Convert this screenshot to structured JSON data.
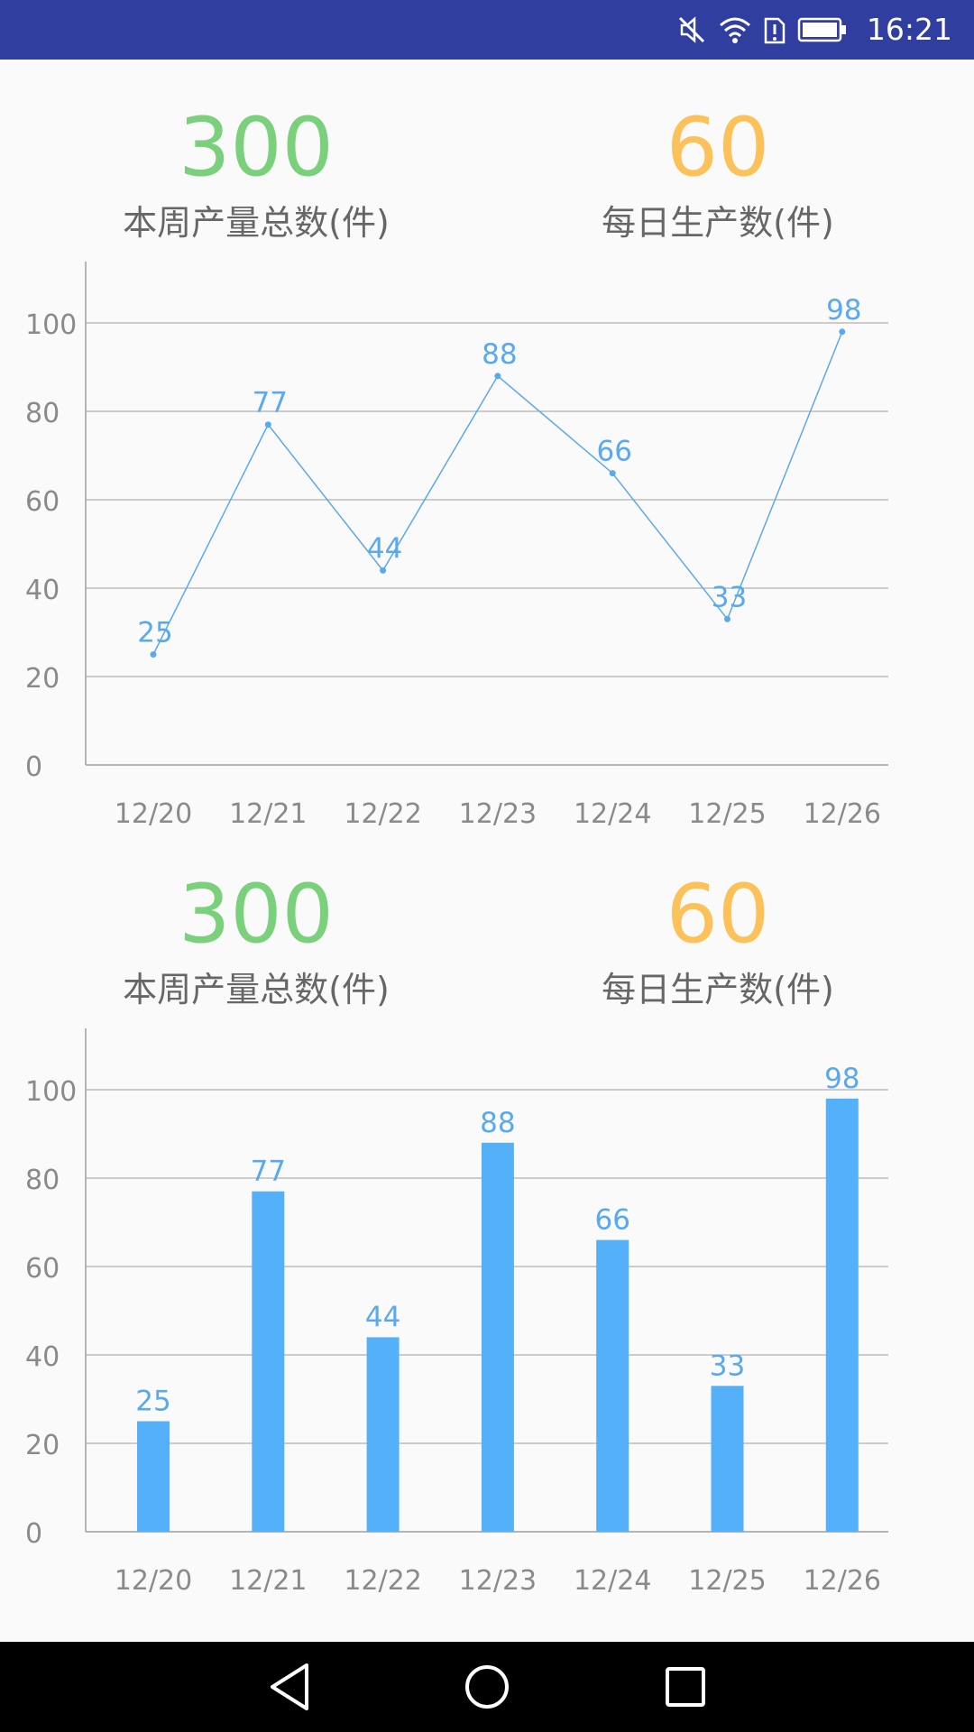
{
  "status_bar": {
    "time": "16:21",
    "icons": [
      "mute-icon",
      "wifi-icon",
      "sim-alert-icon",
      "battery-icon"
    ],
    "background": "#303f9f"
  },
  "colors": {
    "total_color": "#7bd17b",
    "daily_color": "#fcc158",
    "series_color": "#5aa9ee",
    "bar_color": "#55b0fa",
    "grid_color": "#9e9e9e",
    "tick_color": "#8a8a8a"
  },
  "section1": {
    "total": {
      "value": "300",
      "label": "本周产量总数(件)"
    },
    "daily": {
      "value": "60",
      "label": "每日生产数(件)"
    }
  },
  "section2": {
    "total": {
      "value": "300",
      "label": "本周产量总数(件)"
    },
    "daily": {
      "value": "60",
      "label": "每日生产数(件)"
    }
  },
  "chart_data": [
    {
      "type": "line",
      "categories": [
        "12/20",
        "12/21",
        "12/22",
        "12/23",
        "12/24",
        "12/25",
        "12/26"
      ],
      "values": [
        25,
        77,
        44,
        88,
        66,
        33,
        98
      ],
      "yticks": [
        "0",
        "20",
        "40",
        "60",
        "80",
        "100"
      ],
      "ylim": [
        0,
        100
      ],
      "grid": true,
      "data_labels": true
    },
    {
      "type": "bar",
      "categories": [
        "12/20",
        "12/21",
        "12/22",
        "12/23",
        "12/24",
        "12/25",
        "12/26"
      ],
      "values": [
        25,
        77,
        44,
        88,
        66,
        33,
        98
      ],
      "yticks": [
        "0",
        "20",
        "40",
        "60",
        "80",
        "100"
      ],
      "ylim": [
        0,
        100
      ],
      "grid": true,
      "data_labels": true
    }
  ],
  "nav_bar": {
    "buttons": [
      "back-icon",
      "home-icon",
      "recents-icon"
    ]
  }
}
